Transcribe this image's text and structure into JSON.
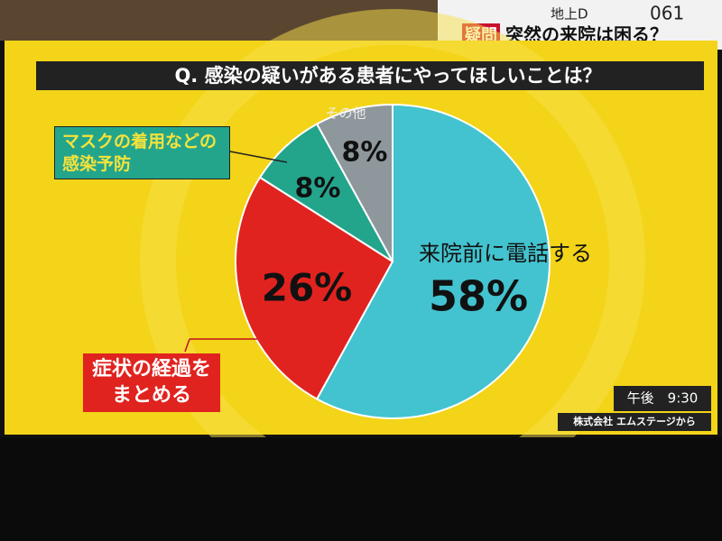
{
  "broadcast": {
    "tag": "疑問",
    "headline": "突然の来院は困る？",
    "channel": "地上D",
    "number": "061"
  },
  "chart_data": {
    "type": "pie",
    "title": "Q. 感染の疑いがある患者にやってほしいことは？",
    "categories": [
      "来院前に電話する",
      "症状の経過をまとめる",
      "マスクの着用などの感染予防",
      "その他"
    ],
    "values": [
      58,
      26,
      8,
      8
    ],
    "value_labels": [
      "58%",
      "26%",
      "8%",
      "8%"
    ],
    "colors": [
      "#43c3cf",
      "#e0231f",
      "#23a58c",
      "#8e979c"
    ],
    "time_label": "午後　9:30",
    "source": "株式会社 エムステージから"
  }
}
